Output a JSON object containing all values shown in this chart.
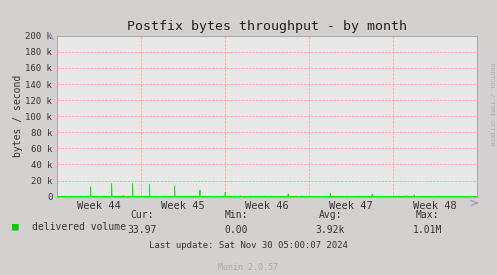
{
  "title": "Postfix bytes throughput - by month",
  "ylabel": "bytes / second",
  "background_color": "#d4d0d0",
  "plot_bg_color": "#e8e8e8",
  "grid_color": "#ff9999",
  "line_color": "#00ee00",
  "fill_color": "#00cc00",
  "ytick_labels": [
    "0",
    "20 k",
    "40 k",
    "60 k",
    "80 k",
    "100 k",
    "120 k",
    "140 k",
    "160 k",
    "180 k",
    "200 k"
  ],
  "ytick_values": [
    0,
    20000,
    40000,
    60000,
    80000,
    100000,
    120000,
    140000,
    160000,
    180000,
    200000
  ],
  "xtick_labels": [
    "Week 44",
    "Week 45",
    "Week 46",
    "Week 47",
    "Week 48"
  ],
  "xtick_pos": [
    0.5,
    1.5,
    2.5,
    3.5,
    4.5
  ],
  "ymax": 200000,
  "legend_label": "delivered volume",
  "cur": "33.97",
  "min_val": "0.00",
  "avg_val": "3.92k",
  "max_val": "1.01M",
  "last_update": "Last update: Sat Nov 30 05:00:07 2024",
  "munin_version": "Munin 2.0.57",
  "rrdtool_text": "RRDTOOL / TOBI OETIKER",
  "title_color": "#222222",
  "text_color": "#333333",
  "axis_color": "#aaaaaa",
  "arrow_color": "#9999bb"
}
